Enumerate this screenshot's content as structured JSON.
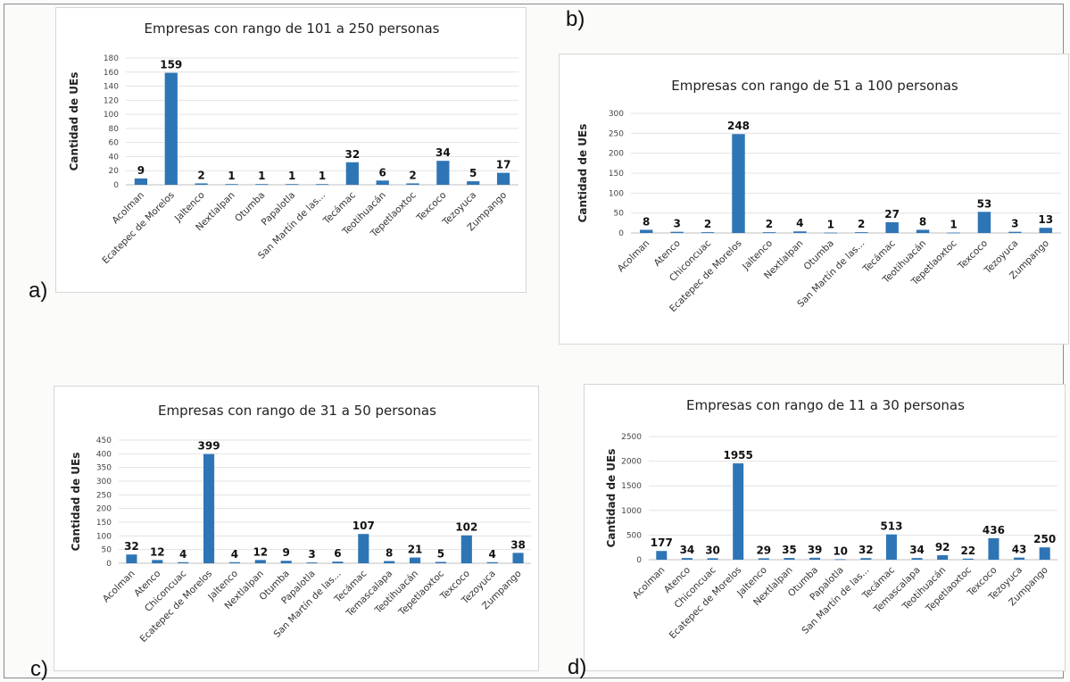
{
  "colors": {
    "bar": "#2e75b6",
    "grid": "#e3e3e3"
  },
  "panel_labels": {
    "a": "a)",
    "b": "b)",
    "c": "c)",
    "d": "d)"
  },
  "chart_data": [
    {
      "id": "a",
      "type": "bar",
      "title": "Empresas con rango de 101 a 250 personas",
      "ylabel": "Cantidad de UEs",
      "xlabel": "",
      "ylim": [
        0,
        180
      ],
      "yticks": [
        0,
        20,
        40,
        60,
        80,
        100,
        120,
        140,
        160,
        180
      ],
      "grid": true,
      "categories": [
        "Acolman",
        "Ecatepec de Morelos",
        "Jaltenco",
        "Nextlalpan",
        "Otumba",
        "Papalotla",
        "San Martín de las...",
        "Tecámac",
        "Teotihuacán",
        "Tepetlaoxtoc",
        "Texcoco",
        "Tezoyuca",
        "Zumpango"
      ],
      "values": [
        9,
        159,
        2,
        1,
        1,
        1,
        1,
        32,
        6,
        2,
        34,
        5,
        17
      ]
    },
    {
      "id": "b",
      "type": "bar",
      "title": "Empresas con rango de 51 a 100 personas",
      "ylabel": "Cantidad de UEs",
      "xlabel": "",
      "ylim": [
        0,
        300
      ],
      "yticks": [
        0,
        50,
        100,
        150,
        200,
        250,
        300
      ],
      "grid": true,
      "categories": [
        "Acolman",
        "Atenco",
        "Chiconcuac",
        "Ecatepec de Morelos",
        "Jaltenco",
        "Nextlalpan",
        "Otumba",
        "San Martín de las...",
        "Tecámac",
        "Teotihuacán",
        "Tepetlaoxtoc",
        "Texcoco",
        "Tezoyuca",
        "Zumpango"
      ],
      "values": [
        8,
        3,
        2,
        248,
        2,
        4,
        1,
        2,
        27,
        8,
        1,
        53,
        3,
        13
      ]
    },
    {
      "id": "c",
      "type": "bar",
      "title": "Empresas con rango de 31 a 50 personas",
      "ylabel": "Cantidad de UEs",
      "xlabel": "",
      "ylim": [
        0,
        450
      ],
      "yticks": [
        0,
        50,
        100,
        150,
        200,
        250,
        300,
        350,
        400,
        450
      ],
      "grid": true,
      "categories": [
        "Acolman",
        "Atenco",
        "Chiconcuac",
        "Ecatepec de Morelos",
        "Jaltenco",
        "Nextlalpan",
        "Otumba",
        "Papalotla",
        "San Martín de las...",
        "Tecámac",
        "Temascalapa",
        "Teotihuacán",
        "Tepetlaoxtoc",
        "Texcoco",
        "Tezoyuca",
        "Zumpango"
      ],
      "values": [
        32,
        12,
        4,
        399,
        4,
        12,
        9,
        3,
        6,
        107,
        8,
        21,
        5,
        102,
        4,
        38
      ]
    },
    {
      "id": "d",
      "type": "bar",
      "title": "Empresas con rango de 11 a 30 personas",
      "ylabel": "Cantidad de UEs",
      "xlabel": "",
      "ylim": [
        0,
        2500
      ],
      "yticks": [
        0,
        500,
        1000,
        1500,
        2000,
        2500
      ],
      "grid": true,
      "categories": [
        "Acolman",
        "Atenco",
        "Chiconcuac",
        "Ecatepec de Morelos",
        "Jaltenco",
        "Nextlalpan",
        "Otumba",
        "Papalotla",
        "San Martín de las...",
        "Tecámac",
        "Temascalapa",
        "Teotihuacán",
        "Tepetlaoxtoc",
        "Texcoco",
        "Tezoyuca",
        "Zumpango"
      ],
      "values": [
        177,
        34,
        30,
        1955,
        29,
        35,
        39,
        10,
        32,
        513,
        34,
        92,
        22,
        436,
        43,
        250
      ]
    }
  ]
}
